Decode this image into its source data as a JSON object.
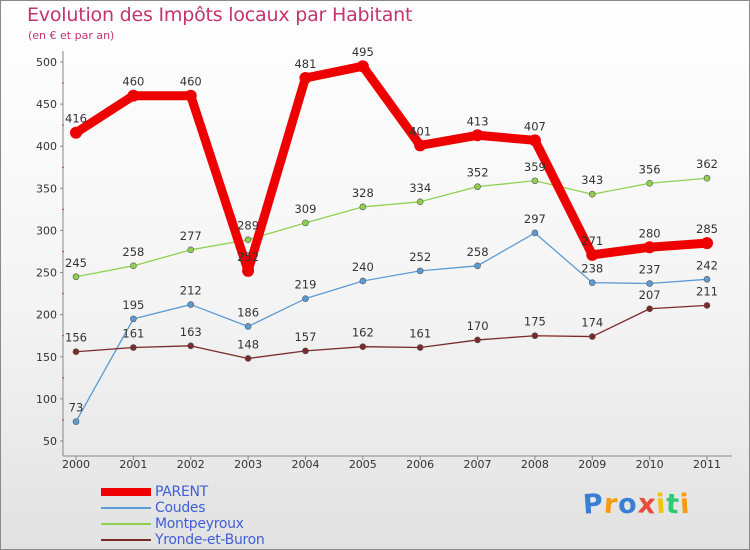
{
  "chart_data": {
    "type": "line",
    "title": "Evolution des Impôts locaux par Habitant",
    "subtitle": "(en € et par an)",
    "xlabel": "",
    "ylabel": "",
    "ylim": [
      50,
      500
    ],
    "yticks": [
      50,
      100,
      150,
      200,
      250,
      300,
      350,
      400,
      450,
      500
    ],
    "categories": [
      "2000",
      "2001",
      "2002",
      "2003",
      "2004",
      "2005",
      "2006",
      "2007",
      "2008",
      "2009",
      "2010",
      "2011"
    ],
    "series": [
      {
        "name": "PARENT",
        "color": "#ee0000",
        "values": [
          416,
          460,
          460,
          252,
          481,
          495,
          401,
          413,
          407,
          271,
          280,
          285
        ]
      },
      {
        "name": "Coudes",
        "color": "#5b9bd5",
        "values": [
          73,
          195,
          212,
          186,
          219,
          240,
          252,
          258,
          297,
          238,
          237,
          242
        ]
      },
      {
        "name": "Montpeyroux",
        "color": "#8fd14f",
        "values": [
          245,
          258,
          277,
          289,
          309,
          328,
          334,
          352,
          359,
          343,
          356,
          362
        ]
      },
      {
        "name": "Yronde-et-Buron",
        "color": "#7b2a2a",
        "values": [
          156,
          161,
          163,
          148,
          157,
          162,
          161,
          170,
          175,
          174,
          207,
          211
        ]
      }
    ],
    "legend_position": "bottom-left",
    "grid": false
  },
  "logo": {
    "letters": [
      "P",
      "r",
      "o",
      "x",
      "i",
      "t",
      "i"
    ],
    "colors": [
      "#3a7fd5",
      "#f39c12",
      "#3a7fd5",
      "#e74c3c",
      "#f1c40f",
      "#2ecc71",
      "#f39c12"
    ]
  }
}
